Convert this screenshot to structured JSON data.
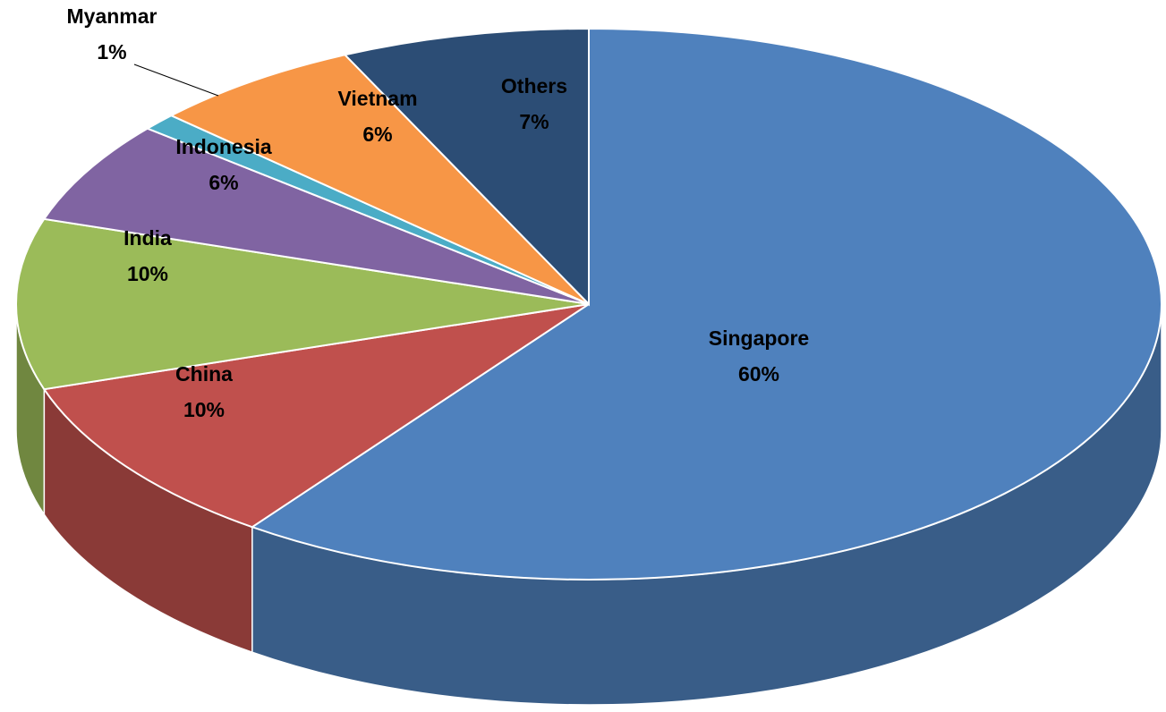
{
  "chart_data": {
    "type": "pie",
    "categories": [
      "Singapore",
      "China",
      "India",
      "Indonesia",
      "Myanmar",
      "Vietnam",
      "Others"
    ],
    "values": [
      60,
      10,
      10,
      6,
      1,
      6,
      7
    ],
    "value_labels": [
      "60%",
      "10%",
      "10%",
      "6%",
      "1%",
      "6%",
      "7%"
    ],
    "colors": [
      "#4f81bd",
      "#c0504d",
      "#9bbb59",
      "#8064a2",
      "#4bacc6",
      "#f79646",
      "#2c4d75"
    ]
  }
}
